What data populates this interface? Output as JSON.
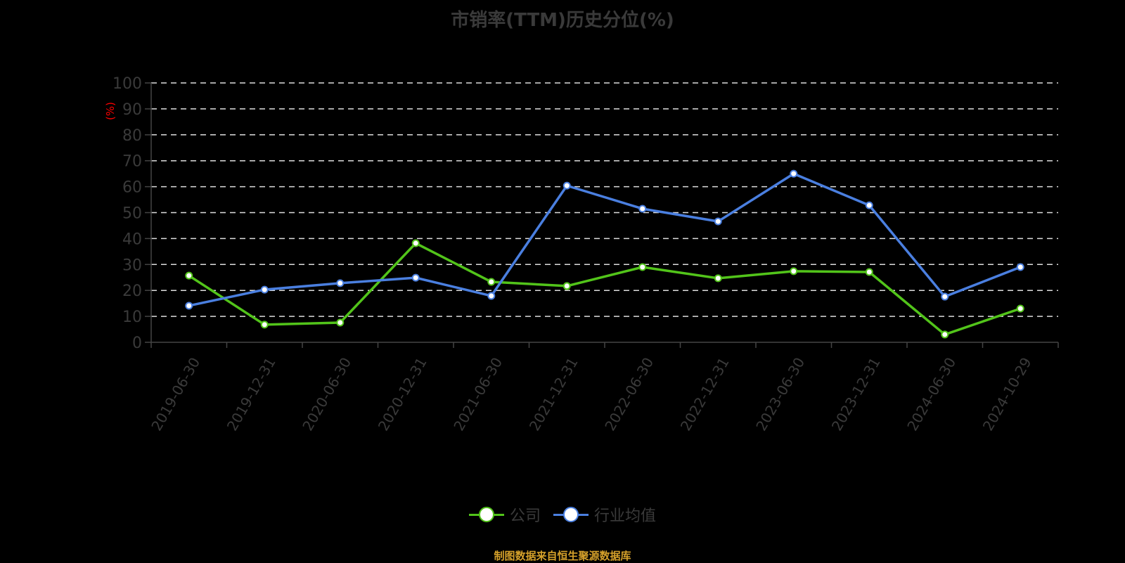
{
  "title": "市销率(TTM)历史分位(%)",
  "footer": "制图数据来自恒生聚源数据库",
  "legend": [
    {
      "label": "公司",
      "color": "#52c41a"
    },
    {
      "label": "行业均值",
      "color": "#4a7fe0"
    }
  ],
  "chart_data": {
    "type": "line",
    "title": "市销率(TTM)历史分位(%)",
    "xlabel": "",
    "ylabel": "(%)",
    "ylim": [
      0,
      100
    ],
    "yticks": [
      0,
      10,
      20,
      30,
      40,
      50,
      60,
      70,
      80,
      90,
      100
    ],
    "grid": true,
    "legend_position": "bottom",
    "categories": [
      "2019-06-30",
      "2019-12-31",
      "2020-06-30",
      "2020-12-31",
      "2021-06-30",
      "2021-12-31",
      "2022-06-30",
      "2022-12-31",
      "2023-06-30",
      "2023-12-31",
      "2024-06-30",
      "2024-10-29"
    ],
    "series": [
      {
        "name": "公司",
        "color": "#52c41a",
        "values": [
          25.7,
          6.8,
          7.6,
          38.2,
          23.3,
          21.7,
          29.0,
          24.7,
          27.4,
          27.1,
          3.0,
          13.0
        ]
      },
      {
        "name": "行业均值",
        "color": "#4a7fe0",
        "values": [
          14.1,
          20.3,
          22.8,
          24.9,
          17.9,
          60.4,
          51.5,
          46.6,
          65.0,
          52.8,
          17.6,
          29.0
        ]
      }
    ]
  }
}
